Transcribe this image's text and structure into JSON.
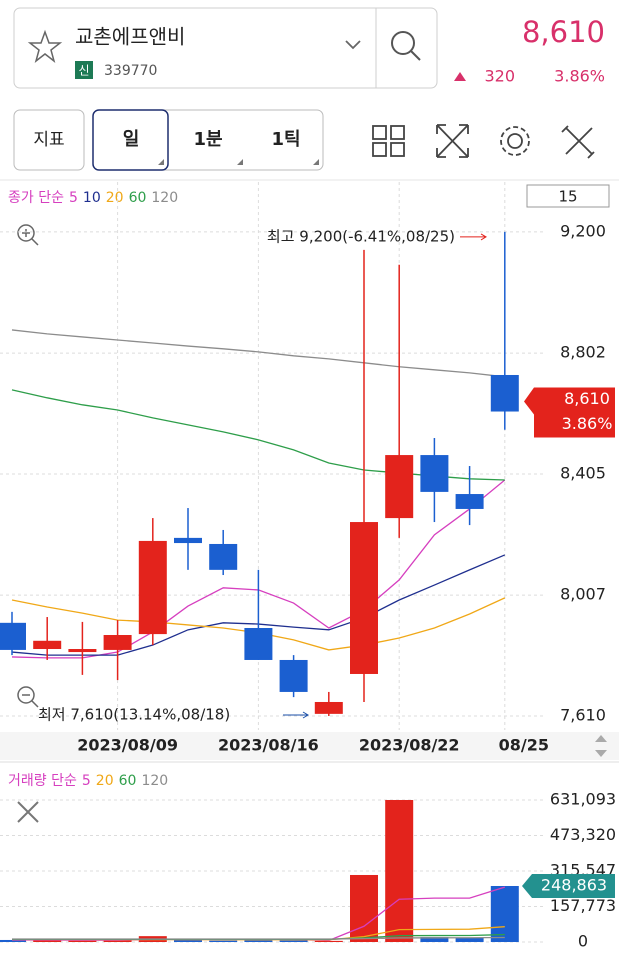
{
  "header": {
    "name": "교촌에프앤비",
    "badge": "신",
    "code": "339770",
    "price": "8,610",
    "change": "320",
    "change_pct": "3.86%"
  },
  "toolbar": {
    "indicator": "지표",
    "periods": [
      "일",
      "1분",
      "1틱"
    ]
  },
  "chart_data": [
    {
      "type": "candlestick",
      "legend_label": "종가 단순",
      "visible_count": 15,
      "categories": [
        null,
        null,
        null,
        "2023/08/09",
        null,
        null,
        null,
        "2023/08/16",
        null,
        null,
        null,
        "2023/08/22",
        null,
        null,
        "08/25"
      ],
      "open": [
        7916,
        7830,
        7820,
        7827,
        7879,
        8195,
        8175,
        7899,
        7794,
        7617,
        7748,
        8260,
        8467,
        8339,
        8730
      ],
      "high": [
        7952,
        7935,
        7919,
        7925,
        8260,
        8293,
        8221,
        8090,
        7810,
        7689,
        9141,
        9092,
        8523,
        8431,
        9200
      ],
      "low": [
        7810,
        7794,
        7745,
        7728,
        7843,
        8090,
        8073,
        7794,
        7672,
        7610,
        7656,
        8195,
        8247,
        8237,
        8550
      ],
      "close": [
        7827,
        7857,
        7830,
        7876,
        8185,
        8178,
        8090,
        7794,
        7689,
        7656,
        8247,
        8467,
        8346,
        8290,
        8610
      ],
      "up_color": "#e3231c",
      "down_color": "#1b5fd0",
      "series": [
        {
          "name": "5",
          "color": "#d63fbf",
          "values": [
            7804,
            7801,
            7801,
            7820,
            7886,
            7971,
            8031,
            8024,
            7981,
            7899,
            7958,
            8057,
            8205,
            8290,
            8385
          ]
        },
        {
          "name": "10",
          "color": "#1f2f8f",
          "values": [
            7820,
            7810,
            7810,
            7810,
            7843,
            7893,
            7916,
            7912,
            7902,
            7893,
            7932,
            7991,
            8040,
            8090,
            8139
          ]
        },
        {
          "name": "20",
          "color": "#f0a818",
          "values": [
            7991,
            7968,
            7948,
            7925,
            7919,
            7909,
            7899,
            7883,
            7860,
            7827,
            7843,
            7866,
            7899,
            7945,
            7998
          ]
        },
        {
          "name": "60",
          "color": "#2e9e4a",
          "values": [
            8681,
            8655,
            8632,
            8615,
            8589,
            8566,
            8543,
            8517,
            8484,
            8441,
            8418,
            8408,
            8398,
            8389,
            8385
          ]
        },
        {
          "name": "120",
          "color": "#8c8c8c",
          "values": [
            8878,
            8865,
            8855,
            8845,
            8835,
            8825,
            8816,
            8806,
            8793,
            8783,
            8770,
            8757,
            8747,
            8737,
            8724
          ]
        }
      ],
      "ylim": [
        7564,
        9354
      ],
      "yticks": [
        {
          "value": 7610,
          "label": "7,610"
        },
        {
          "value": 8007,
          "label": "8,007"
        },
        {
          "value": 8405,
          "label": "8,405"
        },
        {
          "value": 8802,
          "label": "8,802"
        },
        {
          "value": 9200,
          "label": "9,200"
        }
      ],
      "grid": true,
      "annotations": [
        {
          "text": "최고 9,200(-6.41%,08/25)",
          "value": 9200,
          "color": "#e3231c"
        },
        {
          "text": "최저 7,610(13.14%,08/18)",
          "value": 7610,
          "color": "#1b4fa8"
        }
      ],
      "price_tag": {
        "value": 8610,
        "label": "8,610",
        "change": "3.86%",
        "color": "#e3231c"
      }
    },
    {
      "type": "bar",
      "legend_label": "거래량 단순",
      "values": [
        9000,
        8000,
        6000,
        7000,
        26000,
        9000,
        6000,
        8000,
        7000,
        5000,
        297800,
        631093,
        22000,
        20000,
        248863
      ],
      "value_labels": [
        null,
        null,
        null,
        null,
        null,
        null,
        null,
        null,
        null,
        null,
        null,
        null,
        null,
        null,
        "248,863"
      ],
      "label_color": "#23918f",
      "series": [
        {
          "name": "5",
          "color": "#d63fbf",
          "values": [
            9000,
            9000,
            8500,
            8000,
            11000,
            11000,
            11000,
            11000,
            11000,
            7000,
            70000,
            190000,
            195000,
            195000,
            244000
          ]
        },
        {
          "name": "20",
          "color": "#f0a818",
          "values": [
            11000,
            11000,
            11000,
            10500,
            10500,
            10500,
            10000,
            10000,
            10000,
            10000,
            24000,
            55000,
            56000,
            57000,
            68000
          ]
        },
        {
          "name": "60",
          "color": "#2e9e4a",
          "values": [
            12000,
            12000,
            12000,
            12000,
            12000,
            12000,
            12000,
            12000,
            12000,
            12000,
            18000,
            28000,
            28500,
            29000,
            33000
          ]
        },
        {
          "name": "120",
          "color": "#8c8c8c",
          "values": [
            13000,
            13000,
            13000,
            13000,
            13000,
            13000,
            13000,
            13000,
            13000,
            13000,
            15000,
            18000,
            18500,
            19000,
            20000
          ]
        }
      ],
      "ylim": [
        -57800,
        764400
      ],
      "yticks": [
        0,
        {
          "value": 157773,
          "label": "157,773"
        },
        {
          "value": 315547,
          "label": "315,547"
        },
        {
          "value": 473320,
          "label": "473,320"
        },
        {
          "value": 631093,
          "label": "631,093"
        }
      ],
      "grid": true
    }
  ]
}
